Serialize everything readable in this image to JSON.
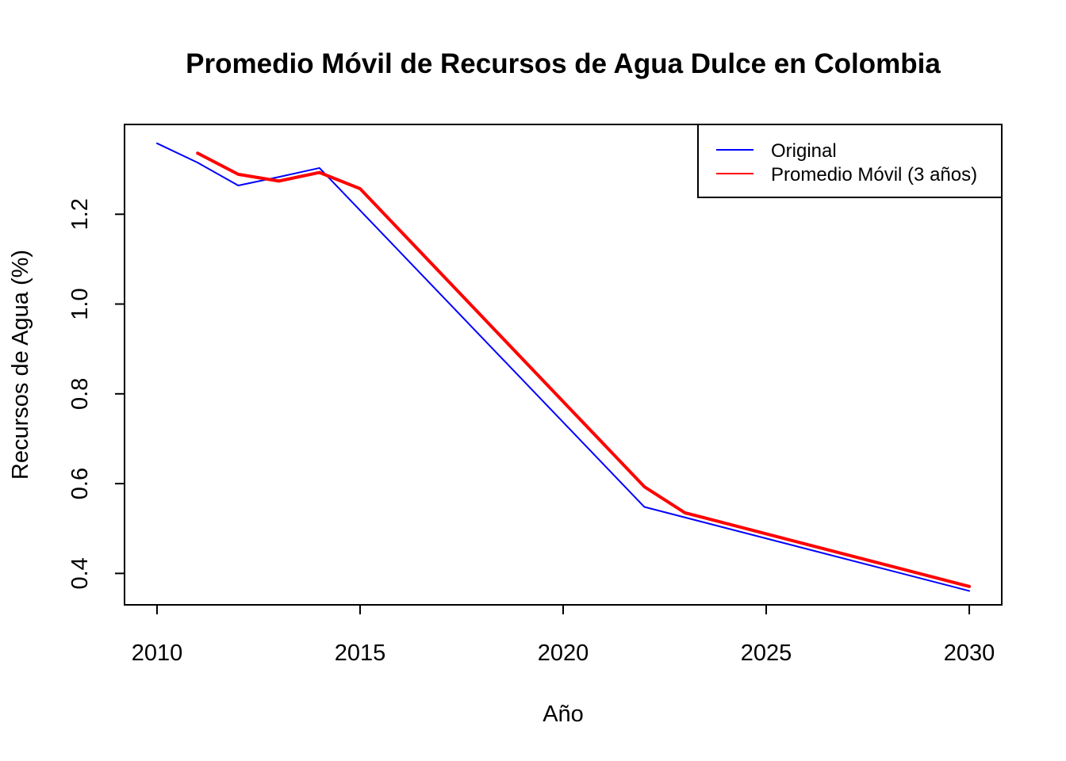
{
  "chart_data": {
    "type": "line",
    "title": "Promedio Móvil de Recursos de Agua Dulce en Colombia",
    "xlabel": "Año",
    "ylabel": "Recursos de Agua (%)",
    "xlim": [
      2009.2,
      2030.8
    ],
    "ylim": [
      0.33,
      1.4
    ],
    "x_ticks": [
      2010,
      2015,
      2020,
      2025,
      2030
    ],
    "y_ticks": [
      0.4,
      0.6,
      0.8,
      1.0,
      1.2
    ],
    "legend_position": "top-right",
    "grid": false,
    "series": [
      {
        "name": "Original",
        "color": "#0000ff",
        "x": [
          2010,
          2011,
          2012,
          2013,
          2014,
          2022,
          2030
        ],
        "y": [
          1.358,
          1.315,
          1.264,
          1.283,
          1.303,
          0.548,
          0.361
        ]
      },
      {
        "name": "Promedio Móvil (3 años)",
        "color": "#ff0000",
        "x": [
          2011,
          2012,
          2013,
          2014,
          2015,
          2022,
          2023,
          2030
        ],
        "y": [
          1.336,
          1.289,
          1.274,
          1.293,
          1.257,
          0.593,
          0.535,
          0.371
        ]
      }
    ]
  }
}
